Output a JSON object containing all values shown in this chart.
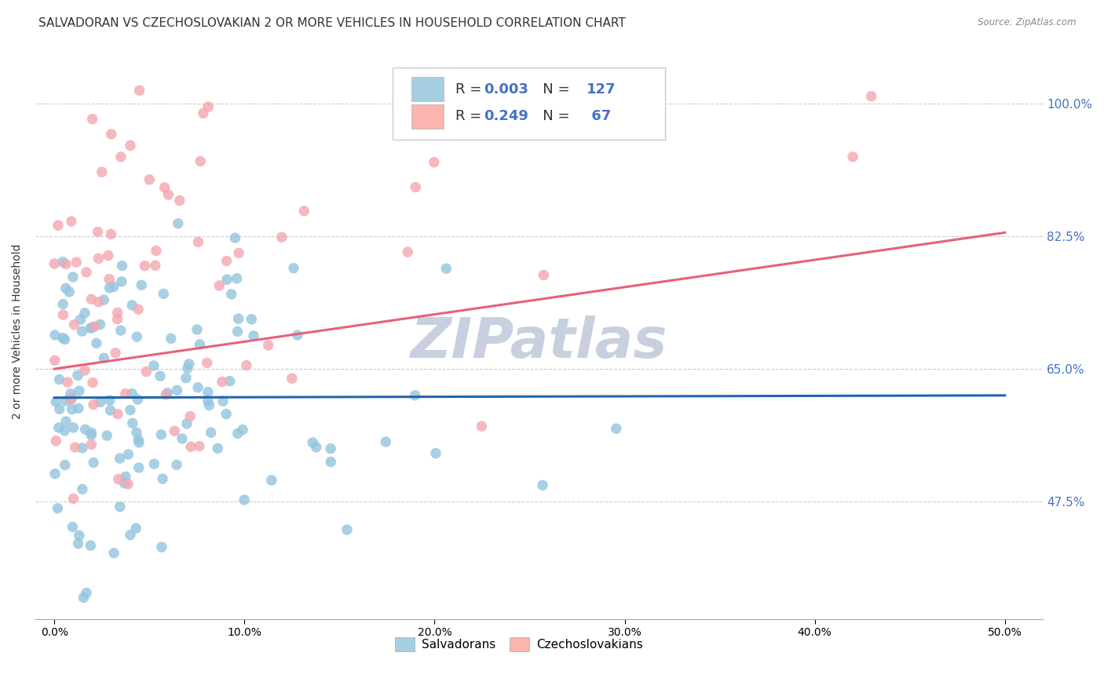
{
  "title": "SALVADORAN VS CZECHOSLOVAKIAN 2 OR MORE VEHICLES IN HOUSEHOLD CORRELATION CHART",
  "source": "Source: ZipAtlas.com",
  "xlabel_salvadoran": "Salvadorans",
  "xlabel_czechoslovakian": "Czechoslovakians",
  "ylabel": "2 or more Vehicles in Household",
  "x_ticks": [
    "0.0%",
    "10.0%",
    "20.0%",
    "30.0%",
    "40.0%",
    "50.0%"
  ],
  "x_tick_vals": [
    0.0,
    0.1,
    0.2,
    0.3,
    0.4,
    0.5
  ],
  "y_ticks": [
    "47.5%",
    "65.0%",
    "82.5%",
    "100.0%"
  ],
  "y_tick_vals": [
    47.5,
    65.0,
    82.5,
    100.0
  ],
  "xlim": [
    -0.01,
    0.52
  ],
  "ylim": [
    32.0,
    108.0
  ],
  "r_salvadoran": 0.003,
  "n_salvadoran": 127,
  "r_czechoslovakian": 0.249,
  "n_czechoslovakian": 67,
  "color_salvadoran": "#92c5de",
  "color_czechoslovakian": "#f4a6b0",
  "line_color_salvadoran": "#2166ac",
  "line_color_czechoslovakian": "#e8607a",
  "legend_box_color_salvadoran": "#a6cee3",
  "legend_box_color_czechoslovakian": "#fbb4ae",
  "grid_color": "#cccccc",
  "background_color": "#ffffff",
  "title_fontsize": 11,
  "axis_label_fontsize": 10,
  "tick_fontsize": 10,
  "legend_fontsize": 13,
  "watermark_color": "#c8d0df",
  "watermark_fontsize": 52,
  "seed": 99,
  "sal_line_y0": 61.2,
  "sal_line_y1": 61.5,
  "cze_line_y0": 65.0,
  "cze_line_y1": 83.0
}
